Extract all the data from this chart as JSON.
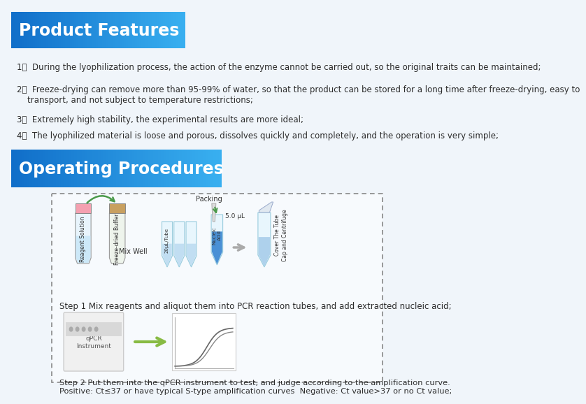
{
  "bg_color": "#f0f5fa",
  "white": "#ffffff",
  "title1": "Product Features",
  "title2": "Operating Procedures",
  "header_gradient_left": "#1565c0",
  "header_gradient_right": "#42a5f5",
  "header_text_color": "#ffffff",
  "features": [
    "During the lyophilization process, the action of the enzyme cannot be carried out, so the original traits can be maintained;",
    "Freeze-drying can remove more than 95-99% of water, so that the product can be stored for a long time after freeze-drying, easy to\n    transport, and not subject to temperature restrictions;",
    "Extremely high stability, the experimental results are more ideal;",
    "The lyophilized material is loose and porous, dissolves quickly and completely, and the operation is very simple;"
  ],
  "step1_text": "Step 1 Mix reagents and aliquot them into PCR reaction tubes, and add extracted nucleic acid;",
  "step2_text": "Step 2 Put them into the qPCR instrument to test, and judge according to the amplification curve.\nPositive: Ct≤37 or have typical S-type amplification curves  Negative: Ct value>37 or no Ct value;",
  "dark_text": "#2c2c2c",
  "box_border": "#aaaaaa",
  "dot_border": "#888888"
}
